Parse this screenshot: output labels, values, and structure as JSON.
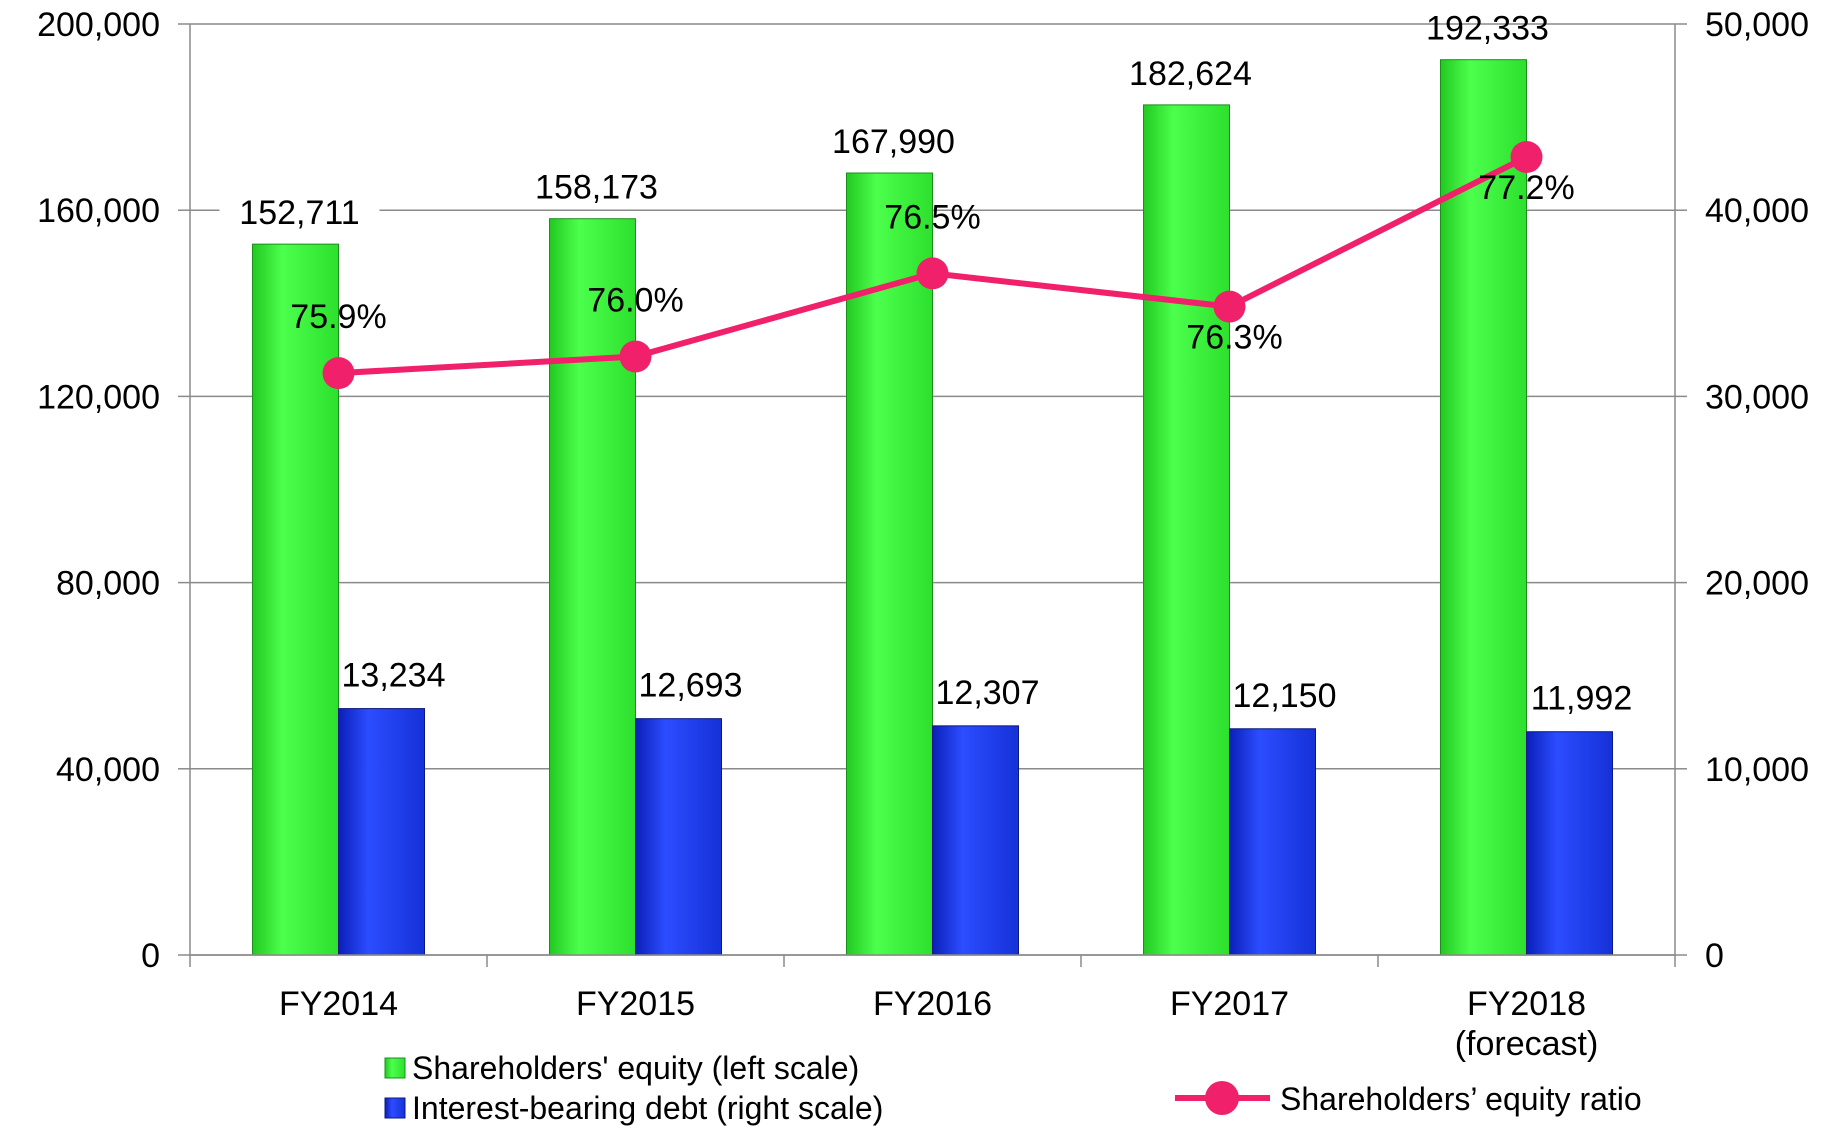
{
  "chart_data": {
    "type": "bar",
    "categories": [
      "FY2014",
      "FY2015",
      "FY2016",
      "FY2017",
      "FY2018\n(forecast)"
    ],
    "series": [
      {
        "name": "Shareholders' equity (left scale)",
        "axis": "left",
        "chart": "bar",
        "color": "#33ee33",
        "values": [
          152711,
          158173,
          167990,
          182624,
          192333
        ],
        "labels": [
          "152,711",
          "158,173",
          "167,990",
          "182,624",
          "192,333"
        ]
      },
      {
        "name": "Interest-bearing debt (right scale)",
        "axis": "right",
        "chart": "bar",
        "color": "#1a35ee",
        "values": [
          13234,
          12693,
          12307,
          12150,
          11992
        ],
        "labels": [
          "13,234",
          "12,693",
          "12,307",
          "12,150",
          "11,992"
        ]
      },
      {
        "name": "Shareholders’ equity ratio",
        "axis": "ratio",
        "chart": "line",
        "color": "#f0206a",
        "values": [
          75.9,
          76.0,
          76.5,
          76.3,
          77.2
        ],
        "labels": [
          "75.9%",
          "76.0%",
          "76.5%",
          "76.3%",
          "77.2%"
        ]
      }
    ],
    "left_axis": {
      "ylim": [
        0,
        200000
      ],
      "ticks": [
        "0",
        "40,000",
        "80,000",
        "120,000",
        "160,000",
        "200,000"
      ]
    },
    "right_axis": {
      "ylim": [
        0,
        50000
      ],
      "ticks": [
        "0",
        "10,000",
        "20,000",
        "30,000",
        "40,000",
        "50,000"
      ]
    },
    "ratio_scale": {
      "ylim": [
        72.4,
        78.0
      ],
      "shown": false
    },
    "grid": true,
    "legend_placement": "bottom"
  }
}
